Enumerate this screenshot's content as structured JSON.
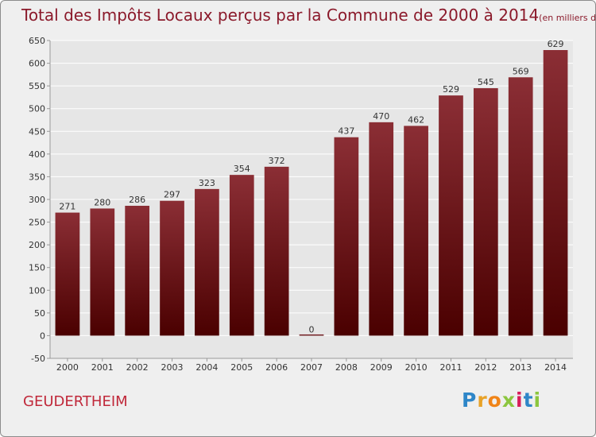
{
  "title": {
    "main": "Total des Impôts Locaux perçus par la Commune de 2000 à 2014",
    "unit": "(en milliers d'€)"
  },
  "commune": "GEUDERTHEIM",
  "logo": {
    "letters": [
      "P",
      "r",
      "o",
      "x",
      "i",
      "t",
      "i"
    ],
    "colors": [
      "#2e86c8",
      "#e8a228",
      "#f08418",
      "#8cc63f",
      "#d81e5b",
      "#2e86c8",
      "#8cc63f"
    ]
  },
  "colors": {
    "bar_top": "#8b2e35",
    "bar_bottom": "#4a0000",
    "grid": "#ffffff",
    "plot_bg": "#e6e6e6",
    "axis_text": "#333333"
  },
  "chart_data": {
    "type": "bar",
    "categories": [
      "2000",
      "2001",
      "2002",
      "2003",
      "2004",
      "2005",
      "2006",
      "2007",
      "2008",
      "2009",
      "2010",
      "2011",
      "2012",
      "2013",
      "2014"
    ],
    "values": [
      271,
      280,
      286,
      297,
      323,
      354,
      372,
      0,
      437,
      470,
      462,
      529,
      545,
      569,
      629
    ],
    "data_labels": [
      "271",
      "280",
      "286",
      "297",
      "323",
      "354",
      "372",
      "0",
      "437",
      "470",
      "462",
      "529",
      "545",
      "569",
      "629"
    ],
    "ylim": [
      -50,
      650
    ],
    "yticks": [
      -50,
      0,
      50,
      100,
      150,
      200,
      250,
      300,
      350,
      400,
      450,
      500,
      550,
      600,
      650
    ],
    "ytick_labels": [
      "-50",
      "0",
      "50",
      "100",
      "150",
      "200",
      "250",
      "300",
      "350",
      "400",
      "450",
      "500",
      "550",
      "600",
      "650"
    ],
    "grid": true,
    "xlabel": "",
    "ylabel": ""
  }
}
